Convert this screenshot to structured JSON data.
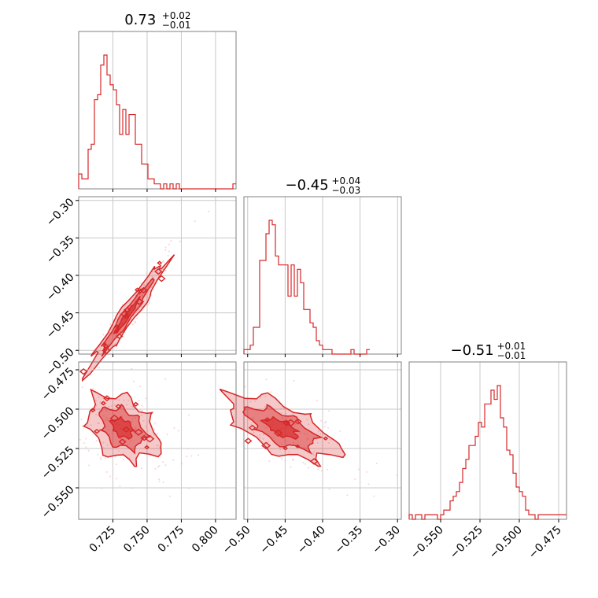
{
  "chart_data": {
    "type": "corner",
    "color": "#d62728",
    "grid": true,
    "parameters": [
      {
        "index": 0,
        "title": {
          "value": "0.73",
          "plus": "+0.02",
          "minus": "−0.01"
        },
        "range": [
          0.7,
          0.815
        ],
        "ticks": [
          0.725,
          0.75,
          0.775,
          0.8
        ],
        "tick_labels": [
          "0.725",
          "0.750",
          "0.775",
          "0.800"
        ]
      },
      {
        "index": 1,
        "title": {
          "value": "−0.45",
          "plus": "+0.04",
          "minus": "−0.03"
        },
        "range": [
          -0.505,
          -0.295
        ],
        "ticks": [
          -0.5,
          -0.45,
          -0.4,
          -0.35,
          -0.3
        ],
        "tick_labels": [
          "−0.50",
          "−0.45",
          "−0.40",
          "−0.35",
          "−0.30"
        ],
        "y_ticks": [
          -0.3,
          -0.35,
          -0.4,
          -0.45,
          -0.5
        ],
        "y_tick_labels": [
          "−0.30",
          "−0.35",
          "−0.40",
          "−0.45",
          "−0.50"
        ]
      },
      {
        "index": 2,
        "title": {
          "value": "−0.51",
          "plus": "+0.01",
          "minus": "−0.01"
        },
        "range": [
          -0.57,
          -0.47
        ],
        "ticks": [
          -0.55,
          -0.525,
          -0.5,
          -0.475
        ],
        "tick_labels": [
          "−0.550",
          "−0.525",
          "−0.500",
          "−0.475"
        ],
        "y_ticks": [
          -0.475,
          -0.5,
          -0.525,
          -0.55
        ],
        "y_tick_labels": [
          "−0.475",
          "−0.500",
          "−0.525",
          "−0.550"
        ]
      }
    ],
    "histograms": [
      {
        "param": 0,
        "bins_start": 0.7,
        "bin_width": 0.0023,
        "counts": [
          3,
          2,
          2,
          8,
          9,
          18,
          19,
          25,
          27,
          23,
          21,
          20,
          17,
          11,
          16,
          11,
          15,
          15,
          9,
          9,
          5,
          5,
          2,
          2,
          1,
          1,
          0,
          1,
          0,
          1,
          0,
          1,
          0,
          0,
          0,
          0,
          0,
          0,
          0,
          0,
          0,
          0,
          0,
          0,
          0,
          0,
          0,
          0,
          0,
          1
        ]
      },
      {
        "param": 1,
        "bins_start": -0.505,
        "bin_width": 0.0042,
        "counts": [
          1,
          1,
          2,
          6,
          6,
          21,
          21,
          27,
          30,
          29,
          22,
          20,
          20,
          20,
          13,
          20,
          13,
          19,
          16,
          10,
          10,
          7,
          6,
          3,
          2,
          1,
          1,
          1,
          0,
          0,
          0,
          0,
          0,
          0,
          1,
          0,
          0,
          0,
          0,
          1
        ]
      },
      {
        "param": 2,
        "bins_start": -0.57,
        "bin_width": 0.002,
        "counts": [
          1,
          0,
          1,
          1,
          0,
          1,
          1,
          1,
          1,
          0,
          1,
          2,
          2,
          4,
          5,
          6,
          8,
          11,
          13,
          16,
          16,
          18,
          21,
          20,
          25,
          25,
          28,
          26,
          29,
          22,
          20,
          15,
          14,
          10,
          7,
          6,
          5,
          2,
          1,
          1,
          0,
          1,
          1,
          1,
          1,
          1,
          1,
          1,
          1,
          1
        ]
      }
    ],
    "joint": [
      {
        "x_param": 0,
        "y_param": 1,
        "center": [
          0.735,
          -0.455
        ],
        "sd": [
          0.012,
          0.031
        ],
        "rho": 0.97
      },
      {
        "x_param": 0,
        "y_param": 2,
        "center": [
          0.732,
          -0.512
        ],
        "sd": [
          0.011,
          0.009
        ],
        "rho": -0.35
      },
      {
        "x_param": 1,
        "y_param": 2,
        "center": [
          -0.455,
          -0.512
        ],
        "sd": [
          0.031,
          0.009
        ],
        "rho": -0.65
      }
    ]
  }
}
